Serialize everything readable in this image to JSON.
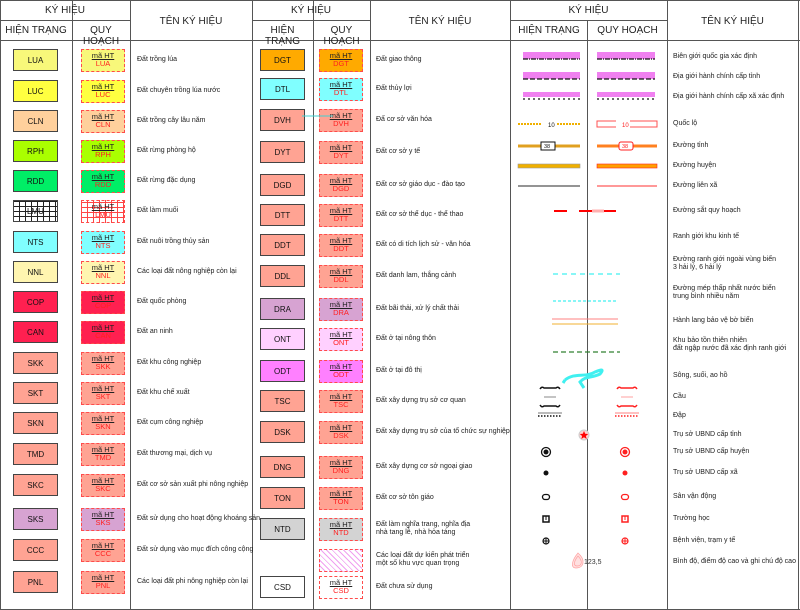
{
  "headers": {
    "ky_hieu": "KÝ HIỆU",
    "hien_trang": "HIỆN TRẠNG",
    "quy_hoach": "QUY HOẠCH",
    "ten_ky_hieu": "TÊN KÝ HIỆU",
    "ma_ht": "mã HT"
  },
  "col1": [
    {
      "code": "LUA",
      "name": "Đất trồng lúa",
      "fill": "#f8f87a"
    },
    {
      "code": "LUC",
      "name": "Đất chuyên trồng lúa nước",
      "fill": "#ffff40"
    },
    {
      "code": "CLN",
      "name": "Đất trồng cây lâu năm",
      "fill": "#ffd09c"
    },
    {
      "code": "RPH",
      "name": "Đất rừng phòng hộ",
      "fill": "#aaff00"
    },
    {
      "code": "RDD",
      "name": "Đất rừng đặc dụng",
      "fill": "#00ee66"
    },
    {
      "code": "LMU",
      "name": "Đất làm muối",
      "fill": "grid"
    },
    {
      "code": "NTS",
      "name": "Đất nuôi trồng thủy sản",
      "fill": "#80ffff"
    },
    {
      "code": "NNL",
      "name": "Các loại đất nông nghiệp còn lại",
      "fill": "#fff5b0"
    },
    {
      "code": "COP",
      "name": "Đất quốc phòng",
      "fill": "#ff2050"
    },
    {
      "code": "CAN",
      "name": "Đất an ninh",
      "fill": "#ff2050"
    },
    {
      "code": "SKK",
      "name": "Đất khu công nghiệp",
      "fill": "#ffa393"
    },
    {
      "code": "SKT",
      "name": "Đất khu chế xuất",
      "fill": "#ffa393"
    },
    {
      "code": "SKN",
      "name": "Đất cụm công nghiệp",
      "fill": "#ffa393"
    },
    {
      "code": "TMD",
      "name": "Đất thương mại, dịch vụ",
      "fill": "#ffa393"
    },
    {
      "code": "SKC",
      "name": "Đất cơ sở sản xuất phi nông nghiệp",
      "fill": "#ffa393"
    },
    {
      "code": "SKS",
      "name": "Đất sử dụng cho hoạt động khoáng sản",
      "fill": "#d7a3d2"
    },
    {
      "code": "CCC",
      "name": "Đất sử dụng vào mục đích công cộng",
      "fill": "#ffa393"
    },
    {
      "code": "PNL",
      "name": "Các loại đất phi nông nghiệp còn lại",
      "fill": "#ffa393"
    }
  ],
  "col2": [
    {
      "code": "DGT",
      "name": "Đất giao thông",
      "fill": "#ffaa00"
    },
    {
      "code": "DTL",
      "name": "Đất thủy lợi",
      "fill": "#80ffff"
    },
    {
      "code": "DVH",
      "name": "Đấ cơ sở văn hóa",
      "fill": "#ffa393"
    },
    {
      "code": "DYT",
      "name": "Đất cơ sở y tế",
      "fill": "#ffa393"
    },
    {
      "code": "DGD",
      "name": "Đất cơ sở giáo dục - đào tạo",
      "fill": "#ffa393"
    },
    {
      "code": "DTT",
      "name": "Đất cơ sở thể dục - thể thao",
      "fill": "#ffa393"
    },
    {
      "code": "DDT",
      "name": "Đất có di tích lịch sử - văn hóa",
      "fill": "#ffa393"
    },
    {
      "code": "DDL",
      "name": "Đất danh lam, thắng cảnh",
      "fill": "#ffa393"
    },
    {
      "code": "DRA",
      "name": "Đất bãi thải, xử lý chất thải",
      "fill": "#d7a3d2"
    },
    {
      "code": "ONT",
      "name": "Đất ở tại nông thôn",
      "fill": "#ffd0ff"
    },
    {
      "code": "ODT",
      "name": "Đất ở tại đô thị",
      "fill": "#ff80ff"
    },
    {
      "code": "TSC",
      "name": "Đất xây dựng trụ sở cơ quan",
      "fill": "#ffa393"
    },
    {
      "code": "DSK",
      "name": "Đất xây dựng trụ sở của tổ chức sự nghiệp",
      "fill": "#ffa393"
    },
    {
      "code": "DNG",
      "name": "Đất xây dựng cơ sở ngoại giao",
      "fill": "#ffa393"
    },
    {
      "code": "TON",
      "name": "Đất cơ sở tôn giáo",
      "fill": "#ffa393"
    },
    {
      "code": "NTD",
      "name": "Đất làm nghĩa trang, nghĩa địa\nnhà tang lễ, nhà hỏa táng",
      "fill": "#d3d3d3"
    },
    {
      "code": "",
      "name": "Các loại đất dự kiến phát triển\nmột số khu vực quan trọng",
      "fill": "hatch"
    },
    {
      "code": "CSD",
      "name": "Đất chưa sử dụng",
      "fill": "#ffffff"
    }
  ],
  "col3": [
    {
      "name": "Biên giới quốc gia xác định",
      "symbol": "national-border"
    },
    {
      "name": "Địa giới hành chính cấp tỉnh",
      "symbol": "province-border"
    },
    {
      "name": "Địa giới hành chính cấp xã xác định",
      "symbol": "commune-border"
    },
    {
      "name": "Quốc lộ",
      "symbol": "national-road",
      "label": "10"
    },
    {
      "name": "Đường tỉnh",
      "symbol": "provincial-road",
      "label": "38"
    },
    {
      "name": "Đường huyện",
      "symbol": "district-road"
    },
    {
      "name": "Đường liên xã",
      "symbol": "intercommune-road"
    },
    {
      "name": "Đường sắt quy hoạch",
      "symbol": "planned-railway"
    },
    {
      "name": "Ranh giới khu kinh tế",
      "symbol": "none"
    },
    {
      "name": "Đường ranh giới ngoài vùng biển\n3 hải lý, 6 hải lý",
      "symbol": "sea-boundary"
    },
    {
      "name": "Đường mép thấp nhất nước biển\ntrung bình nhiều năm",
      "symbol": "low-water-line"
    },
    {
      "name": "Hành lang bảo vệ bờ biển",
      "symbol": "coastal-corridor"
    },
    {
      "name": "Khu bảo tồn thiên nhiên\nđất ngập nước đã xác định ranh giới",
      "symbol": "nature-reserve"
    },
    {
      "name": "Sông, suối, ao hồ",
      "symbol": "river"
    },
    {
      "name": "Cầu",
      "symbol": "bridge"
    },
    {
      "name": "Đập",
      "symbol": "dam"
    },
    {
      "name": "Trụ sở UBND cấp tỉnh",
      "symbol": "province-office-star"
    },
    {
      "name": "Trụ sở UBND cấp huyện",
      "symbol": "district-office-circle"
    },
    {
      "name": "Trụ sở UBND cấp xã",
      "symbol": "commune-office-dot"
    },
    {
      "name": "Sân vận động",
      "symbol": "stadium"
    },
    {
      "name": "Trường học",
      "symbol": "school"
    },
    {
      "name": "Bệnh viện, trạm y tế",
      "symbol": "hospital"
    },
    {
      "name": "Bình độ, điểm độ cao và ghi chú độ cao",
      "symbol": "contour-elevation",
      "label": "123,5"
    }
  ],
  "colors": {
    "planned_red": "#ff2020",
    "border_pink": "#f080f0",
    "cyan": "#40f0f0"
  }
}
